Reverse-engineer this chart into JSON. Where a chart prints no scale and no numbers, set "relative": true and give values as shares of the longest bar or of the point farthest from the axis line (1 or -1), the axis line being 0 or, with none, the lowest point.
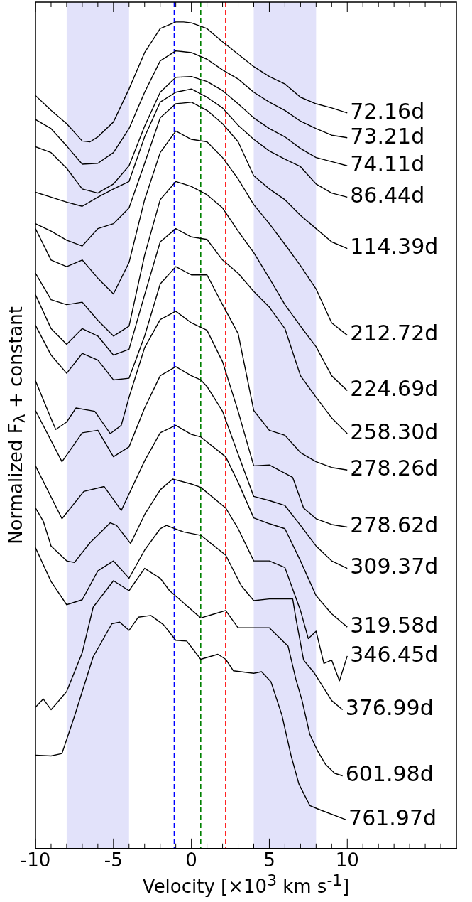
{
  "chart_data": {
    "type": "line",
    "relative": true,
    "xlabel": "Velocity [×10$^{3}$ km s$^{-1}$]",
    "ylabel": "Normalized F$_{λ}$ + constant",
    "xlim": [
      -10,
      17
    ],
    "xticks": [
      -10,
      {
        "value": -9,
        "label": null
      },
      {
        "value": -8,
        "label": null
      },
      {
        "value": -7,
        "label": null
      },
      {
        "value": -6,
        "label": null
      },
      -5,
      {
        "value": -4,
        "label": null
      },
      {
        "value": -3,
        "label": null
      },
      {
        "value": -2,
        "label": null
      },
      {
        "value": -1,
        "label": null
      },
      0,
      {
        "value": 1,
        "label": null
      },
      {
        "value": 2,
        "label": null
      },
      {
        "value": 3,
        "label": null
      },
      {
        "value": 4,
        "label": null
      },
      5,
      {
        "value": 6,
        "label": null
      },
      {
        "value": 7,
        "label": null
      },
      {
        "value": 8,
        "label": null
      },
      {
        "value": 9,
        "label": null
      },
      10,
      {
        "value": 11,
        "label": null
      },
      {
        "value": 12,
        "label": null
      },
      {
        "value": 13,
        "label": null
      },
      {
        "value": 14,
        "label": null
      },
      {
        "value": 15,
        "label": null
      },
      {
        "value": 16,
        "label": null
      }
    ],
    "bands": [
      {
        "axis": "x",
        "from": -8,
        "to": -4,
        "color": "#e2e2fa"
      },
      {
        "axis": "x",
        "from": 4,
        "to": 8,
        "color": "#e2e2fa"
      }
    ],
    "ref_lines": [
      {
        "axis": "x",
        "value": -1.1,
        "color": "#0000ff",
        "line_style": "dashed"
      },
      {
        "axis": "x",
        "value": 0.6,
        "color": "#008000",
        "line_style": "dashed"
      },
      {
        "axis": "x",
        "value": 2.2,
        "color": "#ff0000",
        "line_style": "dashed"
      }
    ],
    "series": [
      {
        "name": "72.16d",
        "color": "#000000",
        "x": [
          -10,
          -9,
          -8,
          -7,
          -6.5,
          -6,
          -5,
          -4,
          -3,
          -2,
          -1,
          -0.5,
          0,
          1,
          2,
          3,
          4,
          5,
          6,
          7,
          8,
          9,
          10
        ],
        "values": [
          0.911,
          0.893,
          0.877,
          0.856,
          0.855,
          0.861,
          0.879,
          0.919,
          0.963,
          0.992,
          1.0,
          1.0,
          0.999,
          0.992,
          0.976,
          0.961,
          0.946,
          0.934,
          0.925,
          0.909,
          0.901,
          0.896,
          0.89
        ]
      },
      {
        "name": "73.21d",
        "color": "#000000",
        "x": [
          -10,
          -9,
          -8,
          -7,
          -6,
          -5,
          -4,
          -3,
          -2,
          -1,
          0,
          1,
          2,
          3,
          4,
          5,
          6,
          7,
          8,
          9,
          10
        ],
        "values": [
          0.882,
          0.871,
          0.85,
          0.828,
          0.829,
          0.842,
          0.871,
          0.915,
          0.953,
          0.965,
          0.963,
          0.955,
          0.942,
          0.931,
          0.915,
          0.903,
          0.893,
          0.88,
          0.871,
          0.863,
          0.86
        ]
      },
      {
        "name": "74.11d",
        "color": "#000000",
        "x": [
          -10,
          -9,
          -8,
          -7,
          -6,
          -5,
          -4,
          -3,
          -2,
          -1,
          0,
          1,
          2,
          3,
          4,
          5,
          6,
          7,
          8,
          9,
          10
        ],
        "values": [
          0.849,
          0.842,
          0.823,
          0.798,
          0.793,
          0.804,
          0.826,
          0.874,
          0.915,
          0.933,
          0.934,
          0.928,
          0.917,
          0.901,
          0.884,
          0.871,
          0.861,
          0.847,
          0.836,
          0.831,
          0.826
        ]
      },
      {
        "name": "86.44d",
        "color": "#000000",
        "x": [
          -10,
          -9,
          -8,
          -7,
          -6,
          -5,
          -4,
          -3,
          -2,
          -1,
          0,
          1,
          2,
          3,
          4,
          5,
          6,
          7,
          8,
          9,
          10
        ],
        "values": [
          0.794,
          0.788,
          0.782,
          0.777,
          0.788,
          0.798,
          0.807,
          0.861,
          0.903,
          0.915,
          0.919,
          0.909,
          0.896,
          0.875,
          0.858,
          0.844,
          0.834,
          0.825,
          0.804,
          0.793,
          0.788
        ]
      },
      {
        "name": "114.39d",
        "color": "#000000",
        "x": [
          -10,
          -9,
          -8,
          -7,
          -6,
          -5,
          -4,
          -3,
          -2,
          -1,
          0,
          1,
          2,
          3,
          4,
          5,
          6,
          7,
          8,
          9,
          10
        ],
        "values": [
          0.756,
          0.747,
          0.736,
          0.729,
          0.75,
          0.756,
          0.775,
          0.829,
          0.884,
          0.901,
          0.903,
          0.893,
          0.877,
          0.855,
          0.814,
          0.798,
          0.785,
          0.766,
          0.75,
          0.734,
          0.726
        ]
      },
      {
        "name": "212.72d",
        "color": "#000000",
        "x": [
          -10,
          -9,
          -8,
          -7,
          -6,
          -5,
          -4,
          -3,
          -2,
          -1,
          0,
          1,
          2,
          3,
          4,
          5,
          6,
          7,
          8,
          9,
          10
        ],
        "values": [
          0.75,
          0.712,
          0.704,
          0.712,
          0.69,
          0.671,
          0.709,
          0.785,
          0.842,
          0.868,
          0.858,
          0.855,
          0.836,
          0.81,
          0.779,
          0.756,
          0.731,
          0.705,
          0.677,
          0.636,
          0.621
        ]
      },
      {
        "name": "224.69d",
        "color": "#000000",
        "x": [
          -10,
          -9,
          -8,
          -7,
          -6,
          -5,
          -4,
          -3,
          -2,
          -1,
          0,
          1,
          2,
          3,
          4,
          5,
          6,
          7,
          8,
          9,
          10
        ],
        "values": [
          0.696,
          0.664,
          0.658,
          0.661,
          0.639,
          0.62,
          0.632,
          0.718,
          0.785,
          0.807,
          0.801,
          0.791,
          0.775,
          0.747,
          0.721,
          0.69,
          0.658,
          0.632,
          0.607,
          0.572,
          0.554
        ]
      },
      {
        "name": "258.30d",
        "color": "#000000",
        "x": [
          -10,
          -9,
          -8,
          -7,
          -6,
          -5,
          -4,
          -3,
          -2,
          -1,
          0,
          1,
          2,
          3,
          4,
          5,
          6,
          7,
          8,
          9,
          10
        ],
        "values": [
          0.67,
          0.629,
          0.61,
          0.629,
          0.62,
          0.597,
          0.604,
          0.67,
          0.734,
          0.75,
          0.74,
          0.737,
          0.712,
          0.696,
          0.674,
          0.655,
          0.629,
          0.572,
          0.546,
          0.521,
          0.502
        ]
      },
      {
        "name": "278.26d",
        "color": "#000000",
        "x": [
          -10,
          -9,
          -8,
          -7,
          -6,
          -5,
          -4,
          -3,
          -2,
          -1,
          0,
          1,
          2,
          3,
          4,
          5,
          6,
          7,
          8,
          9,
          10
        ],
        "values": [
          0.633,
          0.597,
          0.575,
          0.599,
          0.591,
          0.567,
          0.569,
          0.62,
          0.683,
          0.704,
          0.694,
          0.694,
          0.658,
          0.623,
          0.53,
          0.506,
          0.5,
          0.479,
          0.468,
          0.461,
          0.458
        ]
      },
      {
        "name": "278.62d",
        "color": "#000000",
        "x": [
          -10,
          -9,
          -8.7,
          -8,
          -7.4,
          -6.2,
          -5.2,
          -4.5,
          -4,
          -3,
          -2,
          -1,
          0,
          1,
          2,
          3,
          4,
          5,
          6.5,
          7.2,
          8,
          9,
          10
        ],
        "values": [
          0.566,
          0.52,
          0.507,
          0.516,
          0.533,
          0.529,
          0.502,
          0.512,
          0.546,
          0.606,
          0.64,
          0.65,
          0.636,
          0.627,
          0.589,
          0.529,
          0.463,
          0.464,
          0.449,
          0.412,
          0.399,
          0.392,
          0.389
        ]
      },
      {
        "name": "309.37d",
        "color": "#000000",
        "x": [
          -10,
          -8.3,
          -7,
          -6,
          -5,
          -4,
          -3,
          -2,
          -1,
          0,
          0.6,
          1,
          2,
          3,
          4,
          5,
          6,
          7,
          8,
          9,
          10
        ],
        "values": [
          0.53,
          0.468,
          0.503,
          0.506,
          0.474,
          0.486,
          0.533,
          0.572,
          0.583,
          0.572,
          0.567,
          0.559,
          0.529,
          0.477,
          0.426,
          0.421,
          0.415,
          0.391,
          0.366,
          0.348,
          0.339
        ]
      },
      {
        "name": "319.58d",
        "color": "#000000",
        "x": [
          -10,
          -8.3,
          -6.9,
          -5.6,
          -4.5,
          -3,
          -2,
          -1,
          0,
          0.6,
          2.2,
          3,
          4,
          5,
          6,
          7,
          8,
          9,
          10
        ],
        "values": [
          0.463,
          0.399,
          0.432,
          0.438,
          0.409,
          0.469,
          0.503,
          0.512,
          0.501,
          0.498,
          0.474,
          0.443,
          0.4,
          0.393,
          0.387,
          0.348,
          0.306,
          0.284,
          0.268
        ]
      },
      {
        "name": "346.45d",
        "color": "#000000",
        "x": [
          -10,
          -9.5,
          -9,
          -8,
          -7.5,
          -6.5,
          -5.2,
          -4.8,
          -3.9,
          -3,
          -2,
          -1.2,
          0,
          0.6,
          2.2,
          3,
          4,
          5,
          6,
          7,
          7.5,
          8,
          8.5,
          9,
          9.5,
          10
        ],
        "values": [
          0.412,
          0.396,
          0.366,
          0.348,
          0.346,
          0.37,
          0.394,
          0.391,
          0.369,
          0.404,
          0.434,
          0.447,
          0.441,
          0.437,
          0.412,
          0.387,
          0.348,
          0.348,
          0.34,
          0.288,
          0.254,
          0.263,
          0.224,
          0.228,
          0.203,
          0.233
        ]
      },
      {
        "name": "376.99d",
        "color": "#000000",
        "x": [
          -10,
          -9,
          -8,
          -7,
          -6,
          -5,
          -4,
          -3,
          -2,
          -1.6,
          -0.5,
          0.6,
          2.2,
          3.2,
          4,
          5,
          6.5,
          6.7,
          7.2,
          7.9,
          9,
          9.7
        ],
        "values": [
          0.364,
          0.323,
          0.295,
          0.301,
          0.336,
          0.348,
          0.327,
          0.361,
          0.387,
          0.391,
          0.383,
          0.379,
          0.355,
          0.318,
          0.3,
          0.302,
          0.302,
          0.279,
          0.228,
          0.212,
          0.179,
          0.168
        ]
      },
      {
        "name": "601.98d",
        "color": "#000000",
        "x": [
          -10,
          -9.5,
          -9,
          -8.4,
          -8,
          -7,
          -6.3,
          -5,
          -4,
          -3,
          -2,
          -1.4,
          0.6,
          1.5,
          2.2,
          3,
          5,
          6.2,
          6.7,
          7.1,
          7.6,
          8.1,
          8.6,
          9.2,
          9.7
        ],
        "values": [
          0.171,
          0.181,
          0.168,
          0.181,
          0.19,
          0.237,
          0.292,
          0.324,
          0.312,
          0.339,
          0.327,
          0.312,
          0.279,
          0.284,
          0.288,
          0.267,
          0.267,
          0.245,
          0.205,
          0.179,
          0.138,
          0.118,
          0.102,
          0.091,
          0.088
        ]
      },
      {
        "name": "761.97d",
        "color": "#000000",
        "x": [
          -10,
          -9,
          -8.3,
          -7.5,
          -6.3,
          -5.1,
          -4.6,
          -4,
          -3.4,
          -2.6,
          -1.8,
          -1,
          -0.3,
          0.6,
          1.7,
          2.2,
          2.7,
          4,
          4.5,
          5.1,
          5.8,
          6.4,
          6.9,
          7.6,
          8.1,
          9.9
        ],
        "values": [
          0.113,
          0.112,
          0.115,
          0.16,
          0.232,
          0.272,
          0.274,
          0.264,
          0.28,
          0.282,
          0.271,
          0.252,
          0.251,
          0.229,
          0.235,
          0.229,
          0.215,
          0.212,
          0.214,
          0.202,
          0.162,
          0.112,
          0.078,
          0.052,
          0.048,
          0.035
        ]
      }
    ]
  }
}
